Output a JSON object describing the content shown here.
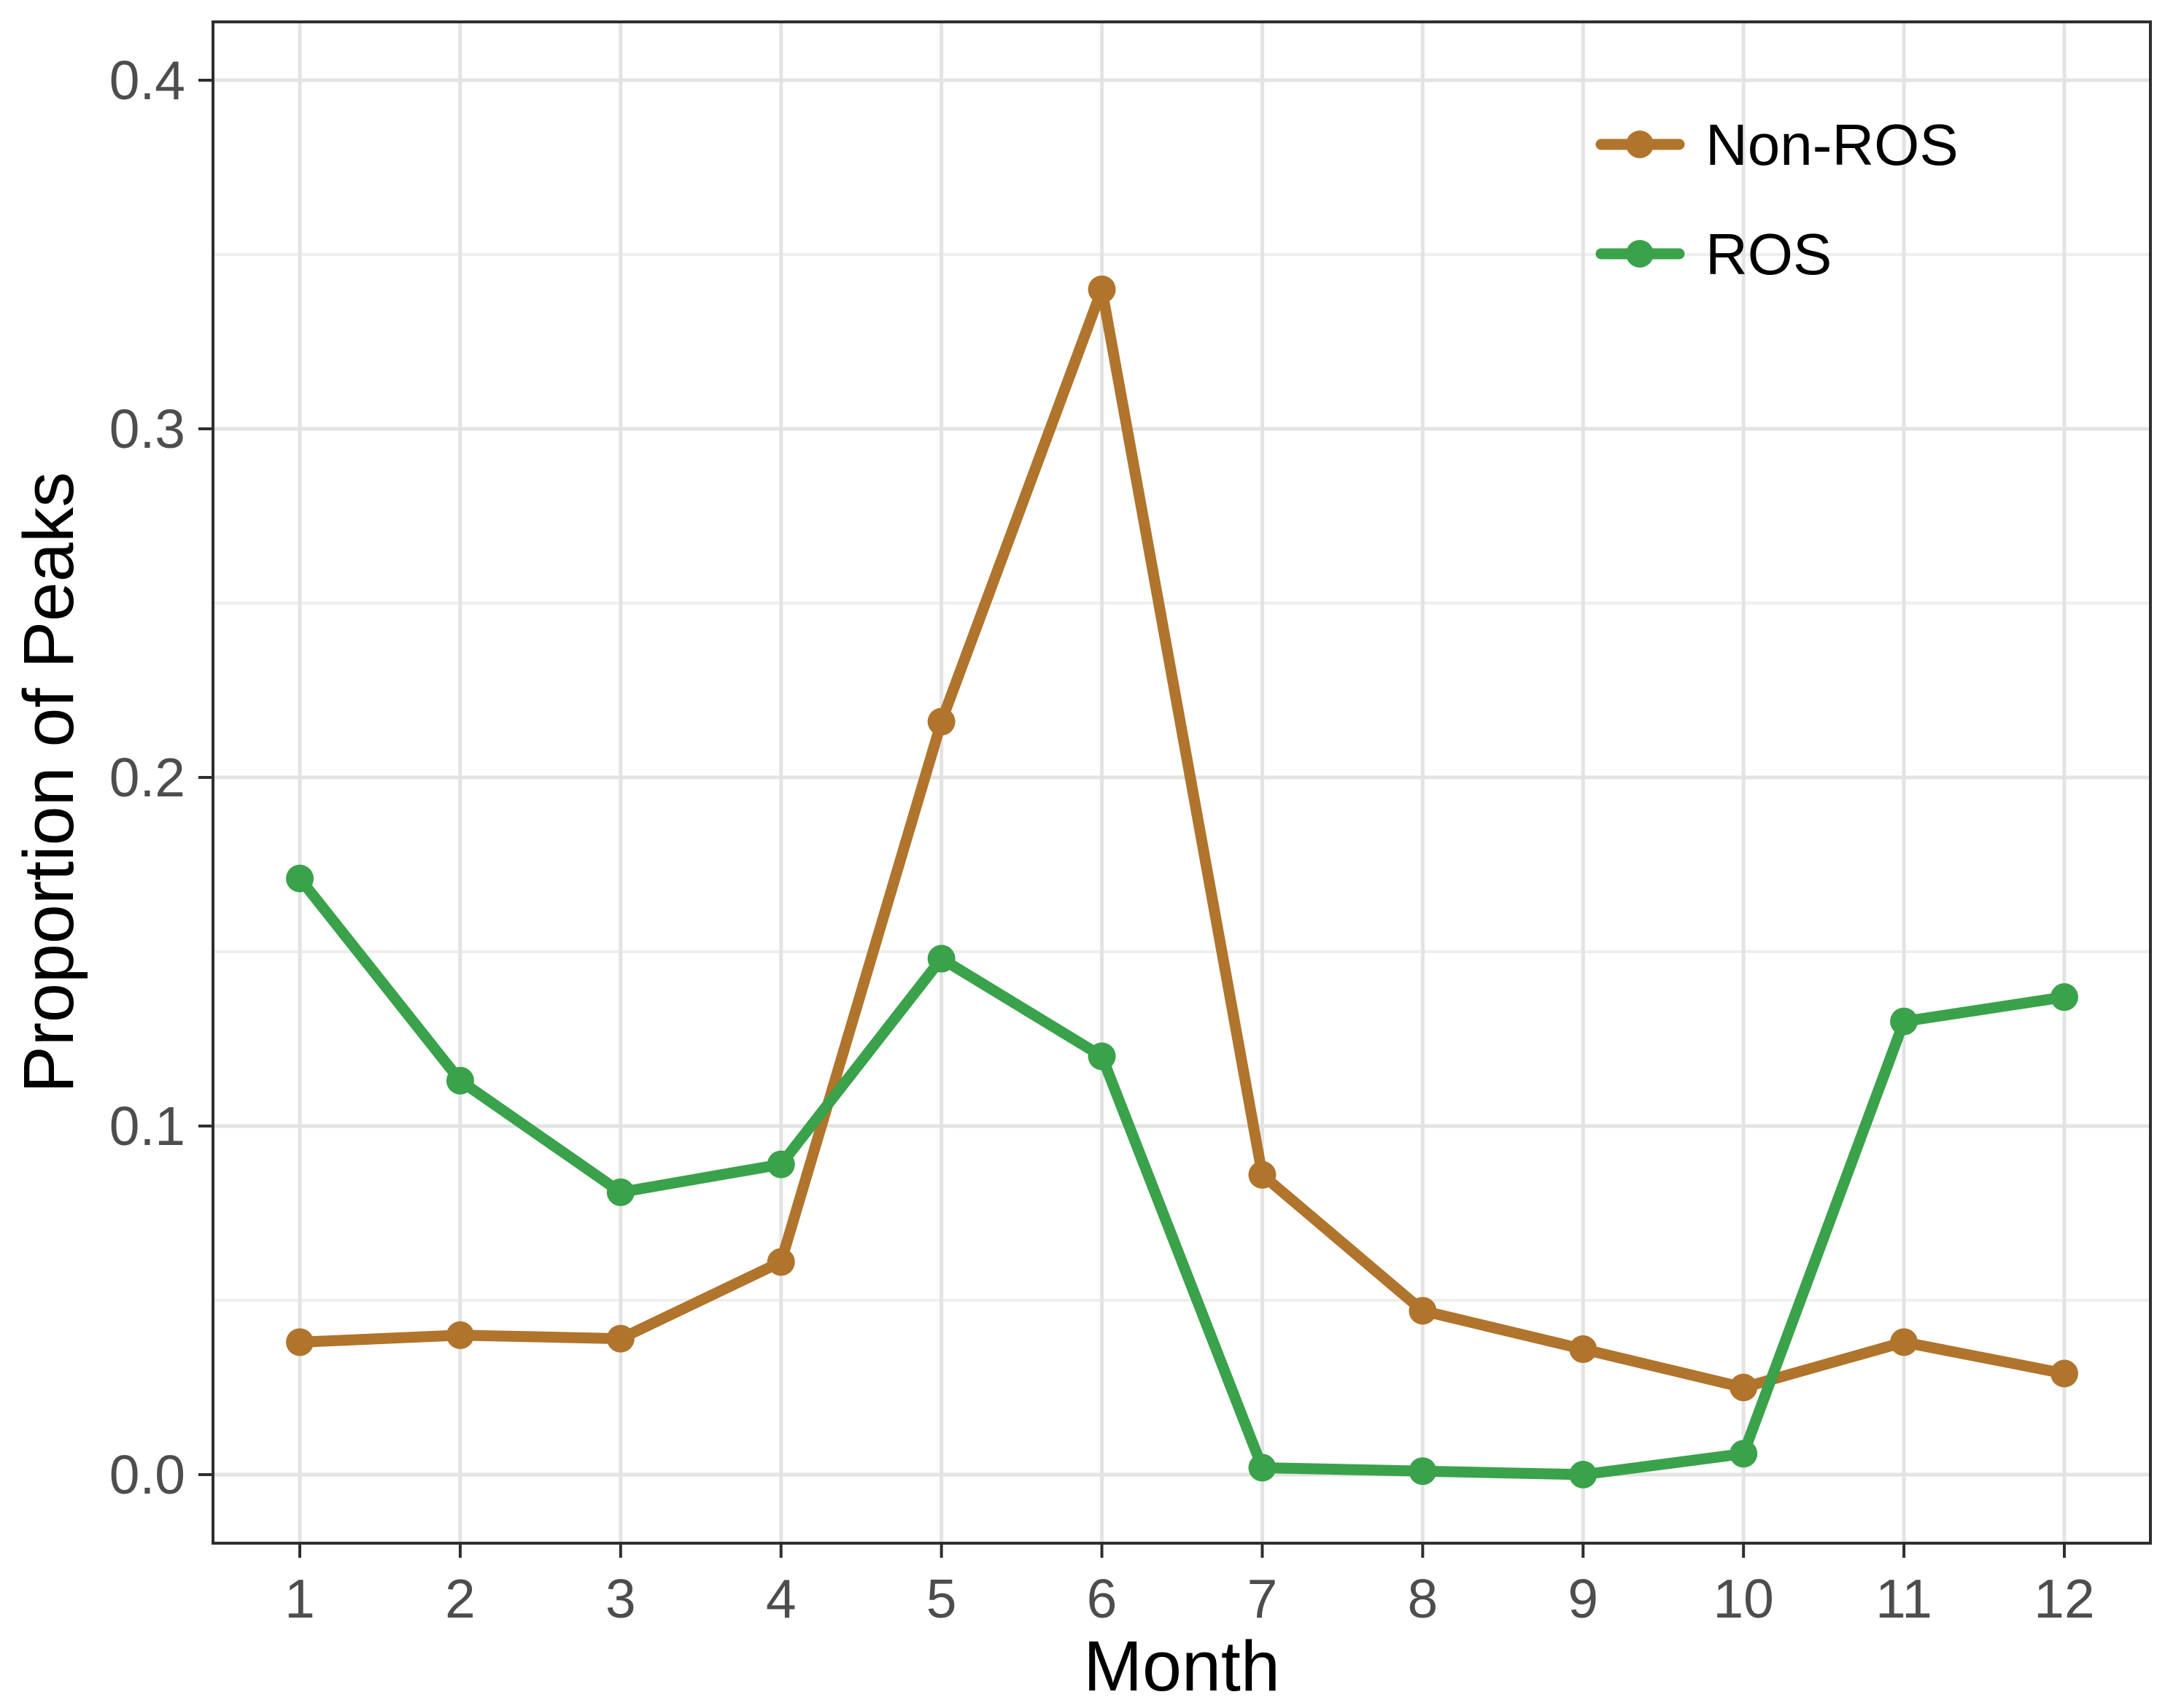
{
  "chart_data": {
    "type": "line",
    "title": "",
    "xlabel": "Month",
    "ylabel": "Proportion of Peaks",
    "x": [
      1,
      2,
      3,
      4,
      5,
      6,
      7,
      8,
      9,
      10,
      11,
      12
    ],
    "x_tick_labels": [
      "1",
      "2",
      "3",
      "4",
      "5",
      "6",
      "7",
      "8",
      "9",
      "10",
      "11",
      "12"
    ],
    "y_ticks": [
      0.0,
      0.1,
      0.2,
      0.3,
      0.4
    ],
    "y_tick_labels": [
      "0.0",
      "0.1",
      "0.2",
      "0.3",
      "0.4"
    ],
    "y_minor_ticks": [
      0.05,
      0.15,
      0.25,
      0.35
    ],
    "ylim": [
      -0.02,
      0.417
    ],
    "grid": "horizontal major+minor, vertical major only",
    "legend_position": "inside-top-right",
    "series": [
      {
        "name": "Non-ROS",
        "color": "#b0742c",
        "values": [
          0.038,
          0.04,
          0.039,
          0.061,
          0.216,
          0.34,
          0.086,
          0.047,
          0.036,
          0.025,
          0.038,
          0.029
        ]
      },
      {
        "name": "ROS",
        "color": "#3aa24a",
        "values": [
          0.171,
          0.113,
          0.081,
          0.089,
          0.148,
          0.12,
          0.002,
          0.001,
          0.0,
          0.006,
          0.13,
          0.137
        ]
      }
    ]
  },
  "colors": {
    "background": "#ffffff",
    "panel_border": "#2e2e2e",
    "tick_mark": "#2e2e2e",
    "axis_tick_text": "#4d4d4d",
    "axis_title_text": "#000000",
    "legend_text": "#000000",
    "grid_major": "#e3e3e3",
    "grid_minor": "#eeeeee"
  }
}
